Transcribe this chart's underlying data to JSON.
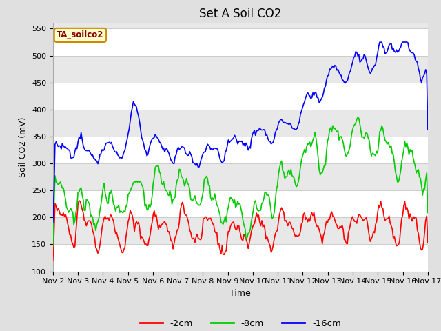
{
  "title": "Set A Soil CO2",
  "ylabel": "Soil CO2 (mV)",
  "xlabel": "Time",
  "annotation": "TA_soilco2",
  "ylim": [
    100,
    560
  ],
  "yticks": [
    100,
    150,
    200,
    250,
    300,
    350,
    400,
    450,
    500,
    550
  ],
  "xtick_labels": [
    "Nov 2",
    "Nov 3",
    "Nov 4",
    "Nov 5",
    "Nov 6",
    "Nov 7",
    "Nov 8",
    "Nov 9",
    "Nov 10",
    "Nov 11",
    "Nov 12",
    "Nov 13",
    "Nov 14",
    "Nov 15",
    "Nov 16",
    "Nov 17"
  ],
  "line_colors": {
    "neg2cm": "#ff0000",
    "neg8cm": "#00cc00",
    "neg16cm": "#0000ff"
  },
  "legend_labels": [
    "-2cm",
    "-8cm",
    "-16cm"
  ],
  "legend_colors": [
    "#ff0000",
    "#00cc00",
    "#0000ff"
  ],
  "bg_color": "#e0e0e0",
  "plot_bg_color": "#f5f5f5",
  "band_color_light": "#ffffff",
  "band_color_dark": "#e8e8e8",
  "grid_color": "#cccccc",
  "title_fontsize": 12,
  "axis_fontsize": 9,
  "tick_fontsize": 8,
  "annotation_bg": "#ffffcc",
  "annotation_border": "#cc8800",
  "annotation_color": "#8B0000"
}
